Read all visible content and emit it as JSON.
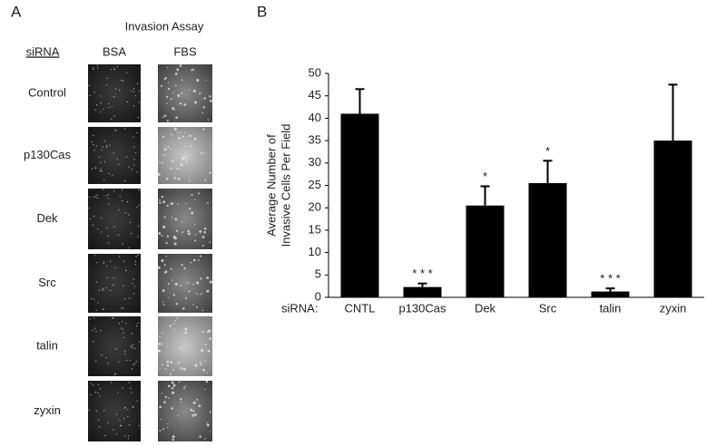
{
  "panel_a": {
    "label": "A",
    "title": "Invasion Assay",
    "row_header": "siRNA",
    "columns": [
      "BSA",
      "FBS"
    ],
    "rows": [
      "Control",
      "p130Cas",
      "Dek",
      "Src",
      "talin",
      "zyxin"
    ]
  },
  "chart_data": {
    "type": "bar",
    "panel_label": "B",
    "ylabel": [
      "Average Number of",
      "Invasive Cells Per Field"
    ],
    "xlabel": "siRNA:",
    "categories": [
      "CNTL",
      "p130Cas",
      "Dek",
      "Src",
      "talin",
      "zyxin"
    ],
    "values": [
      41,
      2.3,
      20.5,
      25.5,
      1.3,
      35
    ],
    "errors": [
      5.5,
      0.8,
      4.3,
      5,
      0.7,
      12.5
    ],
    "significance": [
      null,
      "* * *",
      "*",
      "*",
      "* * *",
      null
    ],
    "color": "#000000",
    "ylim": [
      0,
      50
    ],
    "yticks": [
      0,
      5,
      10,
      15,
      20,
      25,
      30,
      35,
      40,
      45,
      50
    ],
    "grid": false
  }
}
